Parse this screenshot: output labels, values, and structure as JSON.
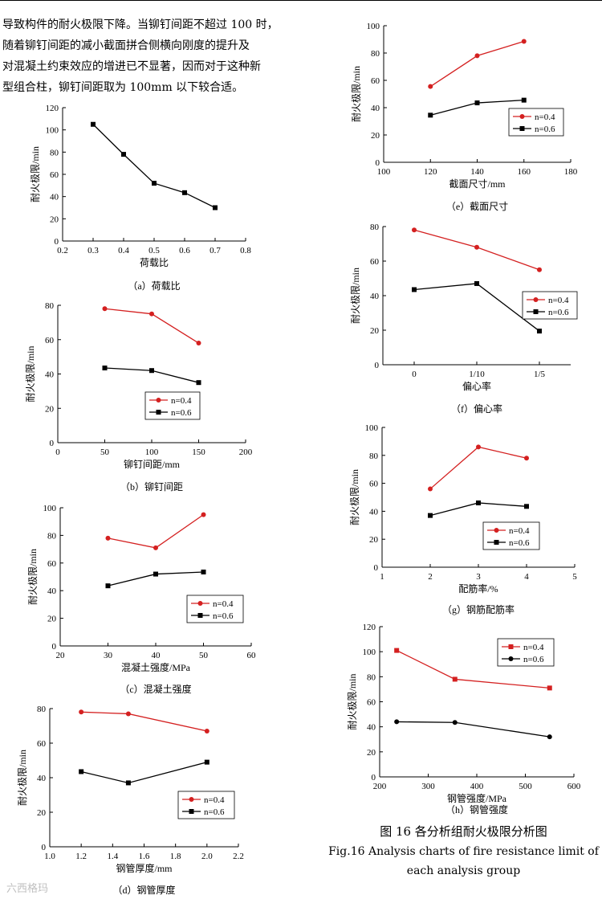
{
  "paragraph": {
    "lines": [
      "导致构件的耐火极限下降。当铆钉间距不超过 100 时，",
      "随着铆钉间距的减小截面拼合侧横向刚度的提升及",
      "对混凝土约束效应的增进已不显著，因而对于这种新",
      "型组合柱，铆钉间距取为 100mm 以下较合适。"
    ]
  },
  "figure": {
    "caption_cn": "图 16  各分析组耐火极限分析图",
    "caption_en": "Fig.16 Analysis charts of fire resistance limit of each analysis group"
  },
  "watermark": "六西格玛",
  "colors": {
    "series_red": "#d42020",
    "series_black": "#000000"
  },
  "chart_data": [
    {
      "id": "a",
      "type": "line",
      "caption": "（a）荷载比",
      "ylabel": "耐火极限/min",
      "xlabel": "荷载比",
      "xlim": [
        0.2,
        0.8
      ],
      "ylim": [
        0,
        120
      ],
      "xticks": [
        "0.2",
        "0.3",
        "0.4",
        "0.5",
        "0.6",
        "0.7",
        "0.8"
      ],
      "yticks": [
        "0",
        "20",
        "40",
        "60",
        "80",
        "100",
        "120"
      ],
      "x": [
        0.3,
        0.4,
        0.5,
        0.6,
        0.7
      ],
      "series": [
        {
          "name": "",
          "color": "#000000",
          "marker": "square",
          "values": [
            105,
            78,
            52,
            43.5,
            30
          ]
        }
      ]
    },
    {
      "id": "b",
      "type": "line",
      "caption": "（b）铆钉间距",
      "ylabel": "耐火极限/min",
      "xlabel": "铆钉间距/mm",
      "xlim": [
        0,
        200
      ],
      "ylim": [
        0,
        80
      ],
      "xticks": [
        "0",
        "50",
        "100",
        "150",
        "200"
      ],
      "yticks": [
        "0",
        "20",
        "40",
        "60",
        "80"
      ],
      "x": [
        50,
        100,
        150
      ],
      "legend": "bottom-right",
      "series": [
        {
          "name": "n=0.4",
          "color": "#d42020",
          "marker": "circle",
          "values": [
            78,
            75,
            58
          ]
        },
        {
          "name": "n=0.6",
          "color": "#000000",
          "marker": "square",
          "values": [
            43.5,
            42,
            35
          ]
        }
      ]
    },
    {
      "id": "c",
      "type": "line",
      "caption": "（c）混凝土强度",
      "ylabel": "耐火极限/min",
      "xlabel": "混凝土强度/MPa",
      "xlim": [
        20,
        60
      ],
      "ylim": [
        0,
        100
      ],
      "xticks": [
        "20",
        "30",
        "40",
        "50",
        "60"
      ],
      "yticks": [
        "0",
        "20",
        "40",
        "60",
        "80",
        "100"
      ],
      "x": [
        30,
        40,
        50
      ],
      "legend": "bottom-right",
      "series": [
        {
          "name": "n=0.4",
          "color": "#d42020",
          "marker": "circle",
          "values": [
            78,
            71,
            95
          ]
        },
        {
          "name": "n=0.6",
          "color": "#000000",
          "marker": "square",
          "values": [
            43.5,
            52,
            53.5
          ]
        }
      ]
    },
    {
      "id": "d",
      "type": "line",
      "caption": "（d）钢管厚度",
      "ylabel": "耐火极限/min",
      "xlabel": "钢管厚度/mm",
      "xlim": [
        1.0,
        2.2
      ],
      "ylim": [
        0,
        80
      ],
      "xticks": [
        "1.0",
        "1.2",
        "1.4",
        "1.6",
        "1.8",
        "2.0",
        "2.2"
      ],
      "yticks": [
        "0",
        "20",
        "40",
        "60",
        "80"
      ],
      "x": [
        1.2,
        1.5,
        2.0
      ],
      "legend": "bottom-right",
      "series": [
        {
          "name": "n=0.4",
          "color": "#d42020",
          "marker": "circle",
          "values": [
            78,
            77,
            67
          ]
        },
        {
          "name": "n=0.6",
          "color": "#000000",
          "marker": "square",
          "values": [
            43.5,
            37,
            49
          ]
        }
      ]
    },
    {
      "id": "e",
      "type": "line",
      "caption": "（e）截面尺寸",
      "ylabel": "耐火极限/min",
      "xlabel": "截面尺寸/mm",
      "xlim": [
        100,
        180
      ],
      "ylim": [
        0,
        100
      ],
      "xticks": [
        "100",
        "120",
        "140",
        "160",
        "180"
      ],
      "yticks": [
        "0",
        "20",
        "40",
        "60",
        "80",
        "100"
      ],
      "x": [
        120,
        140,
        160
      ],
      "legend": "bottom-right",
      "series": [
        {
          "name": "n=0.4",
          "color": "#d42020",
          "marker": "circle",
          "values": [
            55.5,
            78,
            88.5
          ]
        },
        {
          "name": "n=0.6",
          "color": "#000000",
          "marker": "square",
          "values": [
            34.5,
            43.5,
            45.5
          ]
        }
      ]
    },
    {
      "id": "f",
      "type": "line",
      "caption": "（f）偏心率",
      "ylabel": "耐火极限/min",
      "xlabel": "偏心率",
      "xlim": [
        -0.5,
        2.5
      ],
      "ylim": [
        0,
        80
      ],
      "xcategories": [
        "0",
        "1/10",
        "1/5"
      ],
      "yticks": [
        "0",
        "20",
        "40",
        "60",
        "80"
      ],
      "x": [
        0,
        1,
        2
      ],
      "legend": "bottom-right",
      "series": [
        {
          "name": "n=0.4",
          "color": "#d42020",
          "marker": "circle",
          "values": [
            78,
            68,
            55
          ]
        },
        {
          "name": "n=0.6",
          "color": "#000000",
          "marker": "square",
          "values": [
            43.5,
            47,
            19.5
          ]
        }
      ]
    },
    {
      "id": "g",
      "type": "line",
      "caption": "（g）钢筋配筋率",
      "ylabel": "耐火极限/min",
      "xlabel": "配筋率/%",
      "xlim": [
        1,
        5
      ],
      "ylim": [
        0,
        100
      ],
      "xticks": [
        "1",
        "2",
        "3",
        "4",
        "5"
      ],
      "yticks": [
        "0",
        "20",
        "40",
        "60",
        "80",
        "100"
      ],
      "x": [
        2,
        3,
        4
      ],
      "legend": "bottom-right",
      "series": [
        {
          "name": "n=0.4",
          "color": "#d42020",
          "marker": "circle",
          "values": [
            56,
            86,
            78
          ]
        },
        {
          "name": "n=0.6",
          "color": "#000000",
          "marker": "square",
          "values": [
            37,
            46,
            43.5
          ]
        }
      ]
    },
    {
      "id": "h",
      "type": "line",
      "caption": "（h）钢管强度",
      "ylabel": "耐火极限/min",
      "xlabel": "钢管强度/MPa",
      "xlim": [
        200,
        600
      ],
      "ylim": [
        0,
        120
      ],
      "xticks": [
        "200",
        "300",
        "400",
        "500",
        "600"
      ],
      "yticks": [
        "0",
        "20",
        "40",
        "60",
        "80",
        "100",
        "120"
      ],
      "x": [
        235,
        355,
        550
      ],
      "legend": "top-right",
      "series": [
        {
          "name": "n=0.4",
          "color": "#d42020",
          "marker": "square",
          "values": [
            101,
            78,
            71
          ]
        },
        {
          "name": "n=0.6",
          "color": "#000000",
          "marker": "circle",
          "values": [
            44,
            43.5,
            32
          ]
        }
      ]
    }
  ]
}
